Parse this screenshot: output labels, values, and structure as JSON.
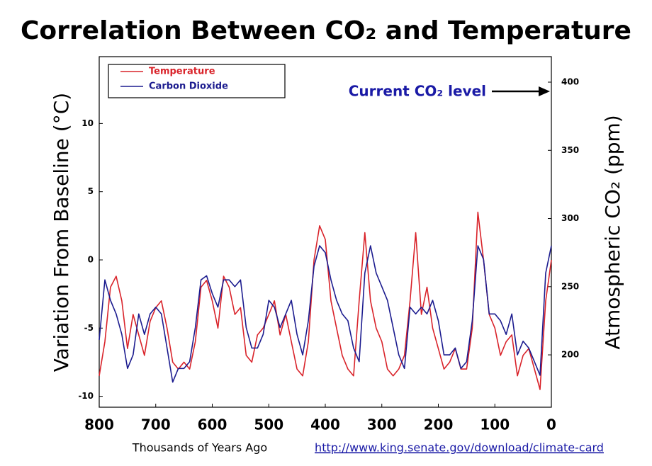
{
  "chart_data": {
    "type": "line",
    "title": "Correlation Between CO₂ and Temperature",
    "ylabel": "Variation From Baseline (°C)",
    "y2label": "Atmospheric CO₂ (ppm)",
    "xlabel": "Thousands of Years Ago",
    "source": "http://www.king.senate.gov/download/climate-card",
    "annotation": "Current CO₂ level",
    "x": [
      800,
      790,
      780,
      770,
      760,
      750,
      740,
      730,
      720,
      710,
      700,
      690,
      680,
      670,
      660,
      650,
      640,
      630,
      620,
      610,
      600,
      590,
      580,
      570,
      560,
      550,
      540,
      530,
      520,
      510,
      500,
      490,
      480,
      470,
      460,
      450,
      440,
      430,
      420,
      410,
      400,
      390,
      380,
      370,
      360,
      350,
      340,
      330,
      320,
      310,
      300,
      290,
      280,
      270,
      260,
      250,
      240,
      230,
      220,
      210,
      200,
      190,
      180,
      170,
      160,
      150,
      140,
      130,
      120,
      110,
      100,
      90,
      80,
      70,
      60,
      50,
      40,
      30,
      20,
      10,
      0
    ],
    "series": [
      {
        "name": "Temperature",
        "color": "#d9232a",
        "values": [
          -8.5,
          -6,
          -2,
          -1.2,
          -3,
          -6.5,
          -4,
          -5.5,
          -7,
          -4.5,
          -3.5,
          -3,
          -5,
          -7.5,
          -8,
          -7.5,
          -8,
          -6,
          -2,
          -1.5,
          -3,
          -5,
          -1.2,
          -2,
          -4,
          -3.5,
          -7,
          -7.5,
          -5.5,
          -5,
          -4,
          -3,
          -5.5,
          -4,
          -6,
          -8,
          -8.5,
          -6,
          0,
          2.5,
          1.5,
          -3,
          -5,
          -7,
          -8,
          -8.5,
          -3,
          2,
          -3,
          -5,
          -6,
          -8,
          -8.5,
          -8,
          -7,
          -3,
          2,
          -4,
          -2,
          -5,
          -6.5,
          -8,
          -7.5,
          -6.5,
          -8,
          -8,
          -5,
          3.5,
          0,
          -4,
          -5,
          -7,
          -6,
          -5.5,
          -8.5,
          -7,
          -6.5,
          -8,
          -9.5,
          -3,
          0
        ]
      },
      {
        "name": "Carbon Dioxide",
        "color": "#1c1c8f",
        "axis": "y2",
        "values": [
          211,
          255,
          240,
          230,
          215,
          190,
          200,
          230,
          215,
          230,
          235,
          230,
          205,
          180,
          190,
          190,
          195,
          220,
          255,
          258,
          245,
          235,
          255,
          255,
          250,
          255,
          220,
          205,
          205,
          215,
          240,
          235,
          220,
          230,
          240,
          215,
          200,
          225,
          265,
          280,
          275,
          255,
          240,
          230,
          225,
          205,
          195,
          260,
          280,
          260,
          250,
          240,
          220,
          200,
          190,
          235,
          230,
          235,
          230,
          240,
          225,
          200,
          200,
          205,
          190,
          195,
          225,
          280,
          270,
          230,
          230,
          225,
          215,
          230,
          200,
          210,
          205,
          195,
          185,
          260,
          280
        ]
      }
    ],
    "xlim": [
      800,
      0
    ],
    "xticks": [
      800,
      700,
      600,
      500,
      400,
      300,
      200,
      100,
      0
    ],
    "ylim": [
      -10.8,
      14.9
    ],
    "yticks": [
      -10,
      -5,
      0,
      5,
      10
    ],
    "y2lim": [
      161.6,
      418.7
    ],
    "y2ticks": [
      200,
      250,
      300,
      350,
      400
    ],
    "legend": "top-left"
  }
}
